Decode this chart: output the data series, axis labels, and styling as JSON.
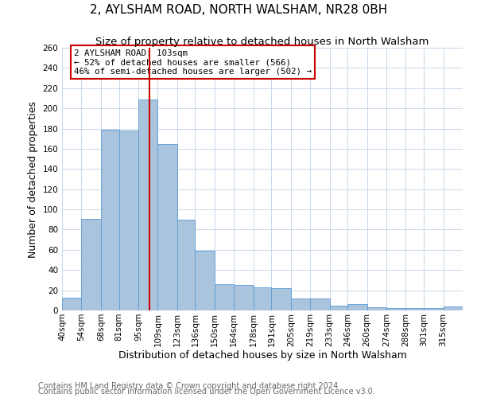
{
  "title": "2, AYLSHAM ROAD, NORTH WALSHAM, NR28 0BH",
  "subtitle": "Size of property relative to detached houses in North Walsham",
  "xlabel": "Distribution of detached houses by size in North Walsham",
  "ylabel": "Number of detached properties",
  "bins": [
    "40sqm",
    "54sqm",
    "68sqm",
    "81sqm",
    "95sqm",
    "109sqm",
    "123sqm",
    "136sqm",
    "150sqm",
    "164sqm",
    "178sqm",
    "191sqm",
    "205sqm",
    "219sqm",
    "233sqm",
    "246sqm",
    "260sqm",
    "274sqm",
    "288sqm",
    "301sqm",
    "315sqm"
  ],
  "bin_edges": [
    40,
    54,
    68,
    81,
    95,
    109,
    123,
    136,
    150,
    164,
    178,
    191,
    205,
    219,
    233,
    246,
    260,
    274,
    288,
    301,
    315,
    329
  ],
  "values": [
    13,
    91,
    179,
    178,
    209,
    165,
    90,
    59,
    26,
    25,
    23,
    22,
    12,
    12,
    5,
    6,
    3,
    2,
    2,
    2,
    4
  ],
  "bar_color": "#aac4de",
  "bar_edge_color": "#5b9bd5",
  "vline_x": 103,
  "vline_color": "#cc0000",
  "annotation_text": "2 AYLSHAM ROAD: 103sqm\n← 52% of detached houses are smaller (566)\n46% of semi-detached houses are larger (502) →",
  "annotation_box_color": "#ffffff",
  "annotation_box_edge": "#cc0000",
  "ylim": [
    0,
    260
  ],
  "yticks": [
    0,
    20,
    40,
    60,
    80,
    100,
    120,
    140,
    160,
    180,
    200,
    220,
    240,
    260
  ],
  "background_color": "#ffffff",
  "grid_color": "#c8d8ea",
  "footer_line1": "Contains HM Land Registry data © Crown copyright and database right 2024.",
  "footer_line2": "Contains public sector information licensed under the Open Government Licence v3.0.",
  "title_fontsize": 11,
  "subtitle_fontsize": 9.5,
  "axis_label_fontsize": 9,
  "tick_fontsize": 7.5,
  "footer_fontsize": 7
}
